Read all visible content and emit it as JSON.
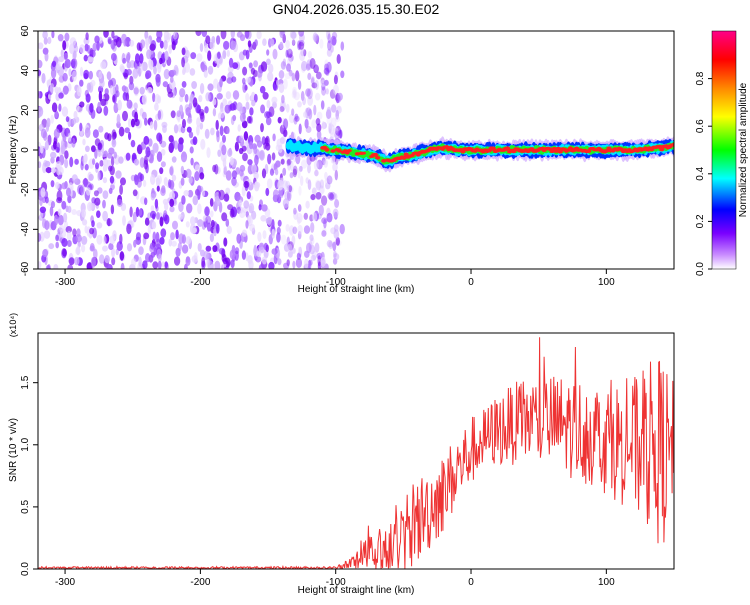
{
  "page_title": "GN04.2026.035.15.30.E02",
  "chart_data": [
    {
      "type": "heatmap",
      "title": "GN04.2026.035.15.30.E02",
      "xlabel": "Height of straight line (km)",
      "ylabel": "Frequency (Hz)",
      "xlim": [
        -320,
        150
      ],
      "ylim": [
        -60,
        60
      ],
      "xticks": [
        -300,
        -200,
        -100,
        0,
        100
      ],
      "yticks": [
        -60,
        -40,
        -20,
        0,
        20,
        40,
        60
      ],
      "colorbar": {
        "label": "Normalized spectral amplitude",
        "range": [
          0,
          1
        ],
        "ticks": [
          0.0,
          0.2,
          0.4,
          0.6,
          0.8
        ],
        "tick_labels": [
          "0.0",
          "0.2",
          "0.4",
          "0.6",
          "0.8"
        ],
        "colormap": [
          "#ffffff",
          "#7700ff",
          "#0000ff",
          "#00ffff",
          "#00ff00",
          "#ffff00",
          "#ff8800",
          "#ff0000",
          "#ff00aa"
        ]
      },
      "noise_region_x": [
        -320,
        -100
      ],
      "signal_ridge": {
        "x": [
          -135,
          -120,
          -110,
          -100,
          -90,
          -80,
          -70,
          -62,
          -55,
          -48,
          -40,
          -30,
          -20,
          -10,
          0,
          20,
          40,
          60,
          80,
          100,
          120,
          140,
          150
        ],
        "freq": [
          2,
          1,
          1,
          0,
          -1,
          -2,
          -3,
          -6,
          -4,
          -3,
          -2,
          0,
          1,
          0,
          0,
          0,
          0,
          0,
          0,
          0,
          0,
          1,
          2
        ]
      }
    },
    {
      "type": "line",
      "xlabel": "Height of straight line (km)",
      "ylabel": "SNR (10 * v/v)",
      "scale_label": "(x10⁴)",
      "xlim": [
        -320,
        150
      ],
      "ylim": [
        0,
        1.9
      ],
      "xticks": [
        -300,
        -200,
        -100,
        0,
        100
      ],
      "yticks": [
        0.0,
        0.5,
        1.0,
        1.5
      ],
      "ytick_labels": [
        "0.0",
        "0.5",
        "1.0",
        "1.5"
      ],
      "color": "#ee3333",
      "envelope": {
        "x": [
          -320,
          -100,
          -90,
          -80,
          -70,
          -60,
          -50,
          -40,
          -30,
          -20,
          -10,
          0,
          10,
          20,
          40,
          60,
          80,
          100,
          120,
          140,
          150
        ],
        "mean": [
          0.01,
          0.01,
          0.03,
          0.08,
          0.12,
          0.18,
          0.25,
          0.38,
          0.5,
          0.62,
          0.8,
          0.95,
          1.05,
          1.12,
          1.2,
          1.18,
          1.12,
          1.05,
          1.0,
          0.95,
          0.9
        ],
        "amp": [
          0.01,
          0.01,
          0.06,
          0.14,
          0.18,
          0.22,
          0.3,
          0.35,
          0.35,
          0.32,
          0.3,
          0.28,
          0.25,
          0.3,
          0.35,
          0.4,
          0.42,
          0.45,
          0.55,
          0.8,
          0.6
        ]
      }
    }
  ]
}
